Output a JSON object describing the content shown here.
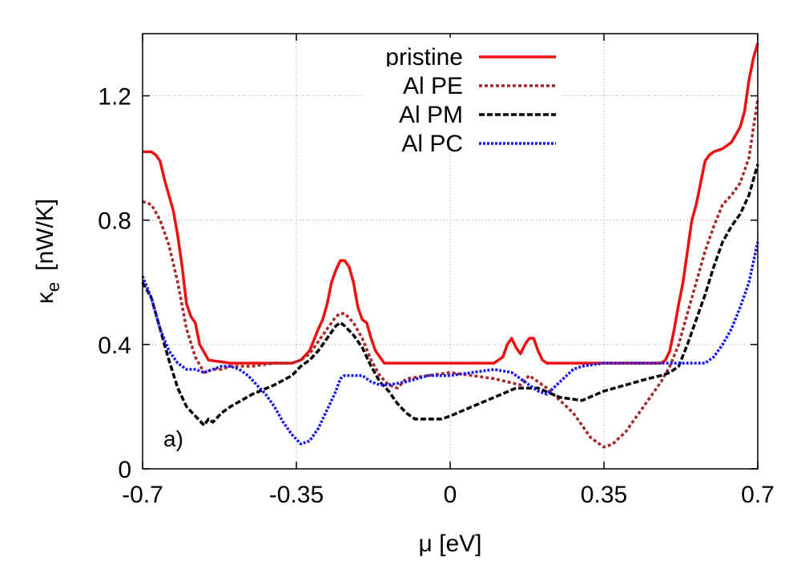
{
  "chart_data": {
    "type": "line",
    "xlabel": "μ [eV]",
    "ylabel_main": "κ",
    "ylabel_sub": "e",
    "ylabel_unit": "[nW/K]",
    "panel_label": "a)",
    "xlim": [
      -0.7,
      0.7
    ],
    "ylim": [
      0,
      1.4
    ],
    "xticks": [
      -0.7,
      -0.35,
      0,
      0.35,
      0.7
    ],
    "xtick_labels": [
      "-0.7",
      "-0.35",
      "0",
      "0.35",
      "0.7"
    ],
    "yticks": [
      0,
      0.4,
      0.8,
      1.2
    ],
    "ytick_labels": [
      "0",
      "0.4",
      "0.8",
      "1.2"
    ],
    "grid": true,
    "legend_position": "top-right",
    "series": [
      {
        "name": "pristine",
        "color": "#ee1111",
        "style": "solid",
        "x": [
          -0.7,
          -0.68,
          -0.67,
          -0.66,
          -0.65,
          -0.64,
          -0.63,
          -0.62,
          -0.61,
          -0.6,
          -0.59,
          -0.58,
          -0.57,
          -0.55,
          -0.5,
          -0.45,
          -0.4,
          -0.36,
          -0.34,
          -0.32,
          -0.3,
          -0.29,
          -0.28,
          -0.27,
          -0.26,
          -0.25,
          -0.24,
          -0.23,
          -0.22,
          -0.21,
          -0.2,
          -0.19,
          -0.18,
          -0.17,
          -0.16,
          -0.15,
          -0.14,
          -0.1,
          0.0,
          0.1,
          0.12,
          0.13,
          0.14,
          0.15,
          0.16,
          0.17,
          0.18,
          0.19,
          0.2,
          0.21,
          0.22,
          0.25,
          0.35,
          0.45,
          0.48,
          0.49,
          0.5,
          0.51,
          0.52,
          0.53,
          0.54,
          0.55,
          0.56,
          0.57,
          0.58,
          0.59,
          0.6,
          0.62,
          0.64,
          0.66,
          0.67,
          0.68,
          0.69,
          0.7
        ],
        "values": [
          1.02,
          1.02,
          1.01,
          0.99,
          0.93,
          0.88,
          0.83,
          0.75,
          0.65,
          0.53,
          0.49,
          0.47,
          0.4,
          0.35,
          0.34,
          0.34,
          0.34,
          0.34,
          0.35,
          0.38,
          0.45,
          0.48,
          0.53,
          0.6,
          0.64,
          0.67,
          0.67,
          0.65,
          0.6,
          0.52,
          0.48,
          0.47,
          0.42,
          0.38,
          0.36,
          0.34,
          0.34,
          0.34,
          0.34,
          0.34,
          0.36,
          0.4,
          0.42,
          0.39,
          0.37,
          0.4,
          0.42,
          0.42,
          0.38,
          0.35,
          0.34,
          0.34,
          0.34,
          0.34,
          0.34,
          0.35,
          0.38,
          0.45,
          0.53,
          0.6,
          0.7,
          0.8,
          0.85,
          0.92,
          0.99,
          1.01,
          1.02,
          1.03,
          1.05,
          1.1,
          1.15,
          1.25,
          1.32,
          1.37
        ]
      },
      {
        "name": "Al PE",
        "color": "#a52a2a",
        "style": "dotted",
        "x": [
          -0.7,
          -0.68,
          -0.66,
          -0.64,
          -0.62,
          -0.6,
          -0.58,
          -0.56,
          -0.54,
          -0.52,
          -0.5,
          -0.45,
          -0.4,
          -0.36,
          -0.34,
          -0.32,
          -0.3,
          -0.28,
          -0.26,
          -0.25,
          -0.24,
          -0.22,
          -0.2,
          -0.18,
          -0.16,
          -0.14,
          -0.12,
          -0.1,
          -0.05,
          0.0,
          0.05,
          0.1,
          0.13,
          0.16,
          0.18,
          0.2,
          0.22,
          0.25,
          0.28,
          0.3,
          0.32,
          0.35,
          0.37,
          0.4,
          0.42,
          0.45,
          0.48,
          0.5,
          0.52,
          0.54,
          0.56,
          0.58,
          0.6,
          0.62,
          0.64,
          0.66,
          0.68,
          0.7
        ],
        "values": [
          0.86,
          0.85,
          0.8,
          0.72,
          0.6,
          0.45,
          0.36,
          0.31,
          0.32,
          0.32,
          0.33,
          0.33,
          0.34,
          0.34,
          0.35,
          0.37,
          0.41,
          0.45,
          0.49,
          0.5,
          0.5,
          0.47,
          0.42,
          0.35,
          0.3,
          0.27,
          0.26,
          0.29,
          0.3,
          0.31,
          0.3,
          0.29,
          0.28,
          0.27,
          0.3,
          0.28,
          0.26,
          0.22,
          0.18,
          0.14,
          0.1,
          0.07,
          0.08,
          0.12,
          0.16,
          0.22,
          0.28,
          0.33,
          0.4,
          0.5,
          0.6,
          0.7,
          0.78,
          0.85,
          0.88,
          0.92,
          1.0,
          1.19
        ]
      },
      {
        "name": "Al PM",
        "color": "#000000",
        "style": "dashed",
        "x": [
          -0.7,
          -0.68,
          -0.66,
          -0.64,
          -0.62,
          -0.6,
          -0.58,
          -0.56,
          -0.55,
          -0.54,
          -0.52,
          -0.5,
          -0.45,
          -0.4,
          -0.36,
          -0.34,
          -0.32,
          -0.3,
          -0.28,
          -0.26,
          -0.25,
          -0.24,
          -0.22,
          -0.2,
          -0.18,
          -0.16,
          -0.14,
          -0.12,
          -0.1,
          -0.08,
          -0.05,
          -0.02,
          0.0,
          0.05,
          0.1,
          0.15,
          0.2,
          0.25,
          0.3,
          0.35,
          0.4,
          0.45,
          0.48,
          0.5,
          0.52,
          0.54,
          0.56,
          0.58,
          0.6,
          0.62,
          0.64,
          0.66,
          0.68,
          0.7
        ],
        "values": [
          0.6,
          0.55,
          0.45,
          0.35,
          0.26,
          0.2,
          0.17,
          0.14,
          0.16,
          0.15,
          0.18,
          0.2,
          0.24,
          0.27,
          0.3,
          0.33,
          0.35,
          0.38,
          0.42,
          0.46,
          0.47,
          0.46,
          0.43,
          0.39,
          0.33,
          0.28,
          0.25,
          0.21,
          0.18,
          0.16,
          0.16,
          0.16,
          0.17,
          0.2,
          0.23,
          0.26,
          0.26,
          0.23,
          0.22,
          0.25,
          0.27,
          0.29,
          0.3,
          0.31,
          0.33,
          0.4,
          0.48,
          0.56,
          0.65,
          0.73,
          0.78,
          0.82,
          0.88,
          0.98
        ]
      },
      {
        "name": "Al PC",
        "color": "#1a1aee",
        "style": "dotted",
        "x": [
          -0.7,
          -0.68,
          -0.66,
          -0.64,
          -0.62,
          -0.6,
          -0.58,
          -0.56,
          -0.54,
          -0.52,
          -0.5,
          -0.48,
          -0.46,
          -0.44,
          -0.42,
          -0.4,
          -0.38,
          -0.36,
          -0.34,
          -0.32,
          -0.3,
          -0.28,
          -0.26,
          -0.25,
          -0.24,
          -0.22,
          -0.2,
          -0.18,
          -0.16,
          -0.14,
          -0.1,
          -0.05,
          0.0,
          0.05,
          0.1,
          0.14,
          0.16,
          0.18,
          0.2,
          0.22,
          0.25,
          0.28,
          0.3,
          0.35,
          0.4,
          0.45,
          0.5,
          0.55,
          0.58,
          0.6,
          0.62,
          0.64,
          0.66,
          0.68,
          0.7
        ],
        "values": [
          0.62,
          0.55,
          0.45,
          0.38,
          0.34,
          0.32,
          0.32,
          0.31,
          0.32,
          0.33,
          0.33,
          0.32,
          0.3,
          0.27,
          0.24,
          0.2,
          0.15,
          0.11,
          0.08,
          0.09,
          0.13,
          0.19,
          0.25,
          0.29,
          0.3,
          0.3,
          0.3,
          0.28,
          0.27,
          0.27,
          0.28,
          0.3,
          0.3,
          0.31,
          0.32,
          0.31,
          0.29,
          0.27,
          0.25,
          0.24,
          0.28,
          0.32,
          0.33,
          0.34,
          0.34,
          0.34,
          0.34,
          0.34,
          0.34,
          0.36,
          0.4,
          0.45,
          0.52,
          0.6,
          0.73
        ]
      }
    ]
  }
}
